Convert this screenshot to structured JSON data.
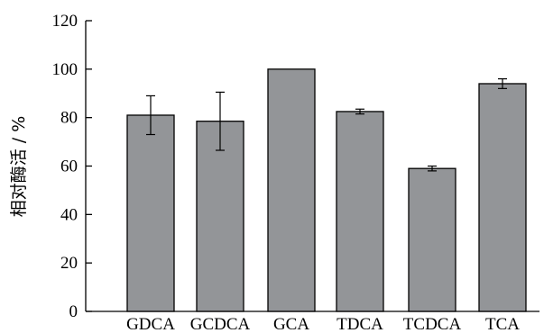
{
  "chart_data": {
    "type": "bar",
    "categories": [
      "GDCA",
      "GCDCA",
      "GCA",
      "TDCA",
      "TCDCA",
      "TCA"
    ],
    "values": [
      81,
      78.5,
      100,
      82.5,
      59,
      94
    ],
    "errors": [
      8,
      12,
      0,
      1,
      1,
      2
    ],
    "ylabel": "相对酶活 / %",
    "xlabel": "",
    "ylim": [
      0,
      120
    ],
    "yticks": [
      0,
      20,
      40,
      60,
      80,
      100,
      120
    ],
    "grid": false,
    "colors": {
      "bar": "#939598",
      "edge": "#000000"
    }
  }
}
